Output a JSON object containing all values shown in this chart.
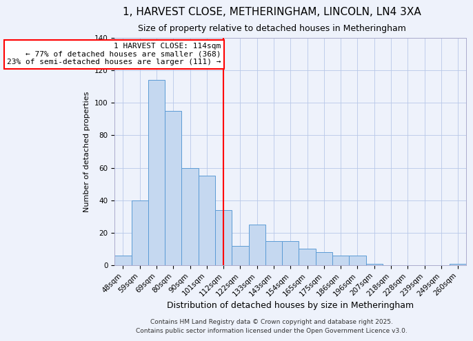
{
  "title": "1, HARVEST CLOSE, METHERINGHAM, LINCOLN, LN4 3XA",
  "subtitle": "Size of property relative to detached houses in Metheringham",
  "xlabel": "Distribution of detached houses by size in Metheringham",
  "ylabel": "Number of detached properties",
  "categories": [
    "48sqm",
    "59sqm",
    "69sqm",
    "80sqm",
    "90sqm",
    "101sqm",
    "112sqm",
    "122sqm",
    "133sqm",
    "143sqm",
    "154sqm",
    "165sqm",
    "175sqm",
    "186sqm",
    "196sqm",
    "207sqm",
    "218sqm",
    "228sqm",
    "239sqm",
    "249sqm",
    "260sqm"
  ],
  "values": [
    6,
    40,
    114,
    95,
    60,
    55,
    34,
    12,
    25,
    15,
    15,
    10,
    8,
    6,
    6,
    1,
    0,
    0,
    0,
    0,
    1
  ],
  "bar_color": "#c5d8f0",
  "bar_edge_color": "#5b9bd5",
  "background_color": "#eef2fb",
  "vline_x_idx": 6,
  "vline_color": "red",
  "annotation_title": "1 HARVEST CLOSE: 114sqm",
  "annotation_line1": "← 77% of detached houses are smaller (368)",
  "annotation_line2": "23% of semi-detached houses are larger (111) →",
  "annotation_box_color": "white",
  "annotation_box_edge_color": "red",
  "ylim": [
    0,
    140
  ],
  "yticks": [
    0,
    20,
    40,
    60,
    80,
    100,
    120,
    140
  ],
  "footer1": "Contains HM Land Registry data © Crown copyright and database right 2025.",
  "footer2": "Contains public sector information licensed under the Open Government Licence v3.0.",
  "title_fontsize": 11,
  "subtitle_fontsize": 9,
  "xlabel_fontsize": 9,
  "ylabel_fontsize": 8,
  "tick_fontsize": 7.5,
  "annotation_fontsize": 8,
  "footer_fontsize": 6.5
}
